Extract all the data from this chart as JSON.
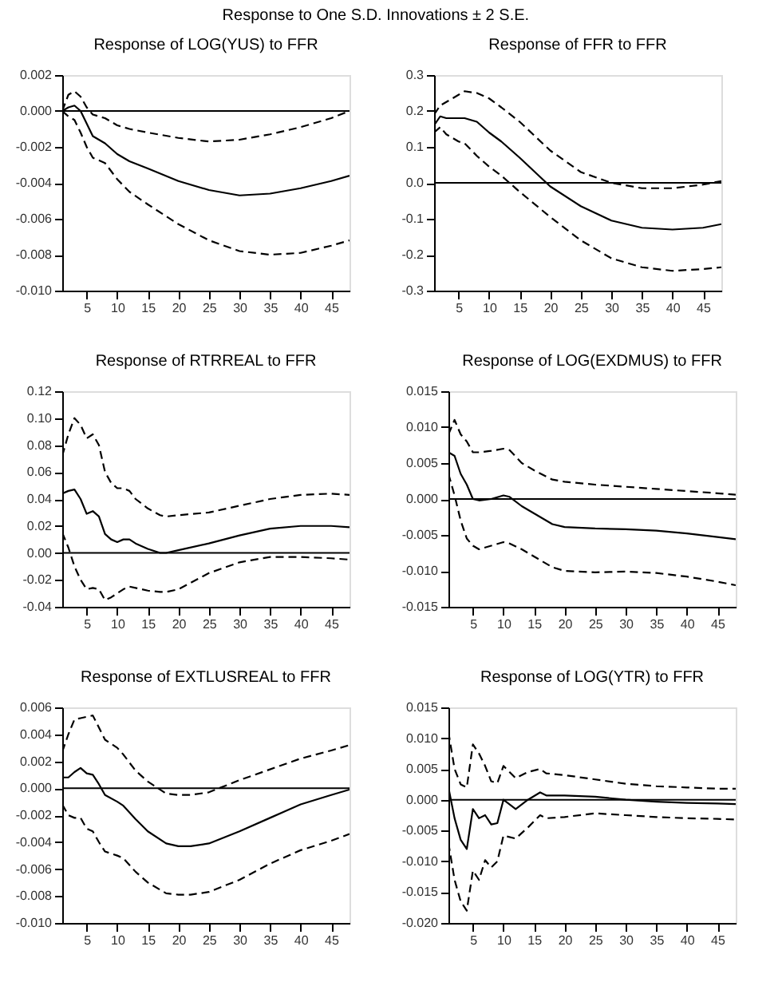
{
  "chart_data": [
    {
      "type": "line",
      "title": "Response of LOG(YUS) to FFR",
      "annotations": [
        "Response to One S.D. Innovations ± 2 S.E."
      ],
      "x": [
        1,
        2,
        3,
        4,
        5,
        6,
        8,
        10,
        12,
        15,
        20,
        25,
        30,
        35,
        40,
        45,
        48
      ],
      "series": [
        {
          "color": "#000000",
          "line_style": "solid",
          "values": [
            0,
            0.0002,
            0.0003,
            0.0,
            -0.0007,
            -0.0014,
            -0.0018,
            -0.0024,
            -0.0028,
            -0.0032,
            -0.0039,
            -0.0044,
            -0.0047,
            -0.0046,
            -0.0043,
            -0.0039,
            -0.0036
          ]
        },
        {
          "color": "#000000",
          "line_style": "dashed",
          "values": [
            0,
            0.0009,
            0.0011,
            0.0008,
            0.0002,
            -0.0002,
            -0.0004,
            -0.0008,
            -0.001,
            -0.0012,
            -0.0015,
            -0.0017,
            -0.0016,
            -0.0013,
            -0.0009,
            -0.0004,
            0.0
          ]
        },
        {
          "color": "#000000",
          "line_style": "dashed",
          "values": [
            0,
            -0.0003,
            -0.0005,
            -0.0012,
            -0.002,
            -0.0026,
            -0.0029,
            -0.0038,
            -0.0045,
            -0.0052,
            -0.0063,
            -0.0072,
            -0.0078,
            -0.008,
            -0.0079,
            -0.0075,
            -0.0072
          ]
        }
      ],
      "xlim": [
        1,
        48
      ],
      "xticks": [
        5,
        10,
        15,
        20,
        25,
        30,
        35,
        40,
        45
      ],
      "ylim": [
        -0.01,
        0.002
      ],
      "yticks": [
        {
          "value": -0.01,
          "label": "-0.010"
        },
        -0.008,
        -0.006,
        -0.004,
        -0.002,
        {
          "value": 0,
          "label": "0.000"
        },
        0.002
      ],
      "ref_lines": [
        {
          "axis": "y",
          "value": 0,
          "color": "#000000"
        }
      ]
    },
    {
      "type": "line",
      "title": "Response of FFR to FFR",
      "x": [
        1,
        2,
        3,
        4,
        5,
        6,
        8,
        10,
        12,
        15,
        20,
        25,
        30,
        35,
        40,
        45,
        48
      ],
      "series": [
        {
          "color": "#000000",
          "line_style": "solid",
          "values": [
            0.16,
            0.185,
            0.18,
            0.18,
            0.18,
            0.18,
            0.17,
            0.14,
            0.115,
            0.07,
            -0.01,
            -0.065,
            -0.105,
            -0.125,
            -0.13,
            -0.125,
            -0.115
          ]
        },
        {
          "color": "#000000",
          "line_style": "dashed",
          "values": [
            0.19,
            0.215,
            0.225,
            0.235,
            0.245,
            0.255,
            0.25,
            0.235,
            0.21,
            0.17,
            0.09,
            0.03,
            0.0,
            -0.015,
            -0.015,
            -0.005,
            0.005
          ]
        },
        {
          "color": "#000000",
          "line_style": "dashed",
          "values": [
            0.14,
            0.155,
            0.135,
            0.125,
            0.115,
            0.11,
            0.075,
            0.045,
            0.02,
            -0.025,
            -0.095,
            -0.16,
            -0.21,
            -0.235,
            -0.245,
            -0.24,
            -0.235
          ]
        }
      ],
      "xlim": [
        1,
        48
      ],
      "xticks": [
        5,
        10,
        15,
        20,
        25,
        30,
        35,
        40,
        45
      ],
      "ylim": [
        -0.3,
        0.3
      ],
      "yticks": [
        -0.3,
        -0.2,
        -0.1,
        {
          "value": 0,
          "label": "0.0"
        },
        0.1,
        0.2,
        0.3
      ],
      "ref_lines": [
        {
          "axis": "y",
          "value": 0,
          "color": "#000000"
        }
      ]
    },
    {
      "type": "line",
      "title": "Response of RTRREAL to FFR",
      "x": [
        1,
        2,
        3,
        4,
        5,
        6,
        7,
        8,
        9,
        10,
        11,
        12,
        13,
        15,
        17,
        18,
        20,
        25,
        30,
        35,
        40,
        45,
        48
      ],
      "series": [
        {
          "color": "#000000",
          "line_style": "solid",
          "values": [
            0.044,
            0.046,
            0.047,
            0.04,
            0.029,
            0.031,
            0.027,
            0.014,
            0.01,
            0.008,
            0.01,
            0.01,
            0.007,
            0.003,
            0.0,
            0.0,
            0.002,
            0.007,
            0.013,
            0.018,
            0.02,
            0.02,
            0.019
          ]
        },
        {
          "color": "#000000",
          "line_style": "dashed",
          "values": [
            0.072,
            0.088,
            0.1,
            0.095,
            0.085,
            0.088,
            0.08,
            0.06,
            0.052,
            0.048,
            0.048,
            0.046,
            0.04,
            0.033,
            0.028,
            0.027,
            0.028,
            0.03,
            0.035,
            0.04,
            0.043,
            0.044,
            0.043
          ]
        },
        {
          "color": "#000000",
          "line_style": "dashed",
          "values": [
            0.015,
            0.004,
            -0.01,
            -0.02,
            -0.027,
            -0.026,
            -0.027,
            -0.035,
            -0.033,
            -0.03,
            -0.027,
            -0.025,
            -0.026,
            -0.028,
            -0.029,
            -0.029,
            -0.027,
            -0.015,
            -0.007,
            -0.003,
            -0.003,
            -0.004,
            -0.005
          ]
        }
      ],
      "xlim": [
        1,
        48
      ],
      "xticks": [
        5,
        10,
        15,
        20,
        25,
        30,
        35,
        40,
        45
      ],
      "ylim": [
        -0.04,
        0.12
      ],
      "yticks": [
        -0.04,
        -0.02,
        {
          "value": 0,
          "label": "0.00"
        },
        0.02,
        0.04,
        0.06,
        0.08,
        {
          "value": 0.1,
          "label": "0.10"
        },
        0.12
      ],
      "ref_lines": [
        {
          "axis": "y",
          "value": 0,
          "color": "#000000"
        }
      ]
    },
    {
      "type": "line",
      "title": "Response of LOG(EXDMUS) to FFR",
      "x": [
        1,
        2,
        3,
        4,
        5,
        6,
        8,
        10,
        11,
        13,
        15,
        18,
        20,
        25,
        30,
        35,
        40,
        45,
        48
      ],
      "series": [
        {
          "color": "#000000",
          "line_style": "solid",
          "values": [
            0.0065,
            0.006,
            0.0035,
            0.002,
            0.0,
            -0.0002,
            0.0,
            0.0005,
            0.0003,
            -0.001,
            -0.002,
            -0.0035,
            -0.0039,
            -0.0041,
            -0.0042,
            -0.0044,
            -0.0048,
            -0.0053,
            -0.0056
          ]
        },
        {
          "color": "#000000",
          "line_style": "dashed",
          "values": [
            0.009,
            0.011,
            0.009,
            0.008,
            0.0065,
            0.0065,
            0.0067,
            0.007,
            0.0068,
            0.005,
            0.004,
            0.0027,
            0.0024,
            0.002,
            0.0017,
            0.0014,
            0.0011,
            0.0008,
            0.0006
          ]
        },
        {
          "color": "#000000",
          "line_style": "dashed",
          "values": [
            0.0035,
            0.0005,
            -0.003,
            -0.0055,
            -0.0065,
            -0.007,
            -0.0065,
            -0.006,
            -0.0062,
            -0.007,
            -0.008,
            -0.0095,
            -0.01,
            -0.0102,
            -0.0101,
            -0.0103,
            -0.0108,
            -0.0115,
            -0.012
          ]
        }
      ],
      "xlim": [
        1,
        48
      ],
      "xticks": [
        5,
        10,
        15,
        20,
        25,
        30,
        35,
        40,
        45
      ],
      "ylim": [
        -0.015,
        0.015
      ],
      "yticks": [
        -0.015,
        {
          "value": -0.01,
          "label": "-0.010"
        },
        -0.005,
        {
          "value": 0,
          "label": "0.000"
        },
        0.005,
        {
          "value": 0.01,
          "label": "0.010"
        },
        0.015
      ],
      "ref_lines": [
        {
          "axis": "y",
          "value": 0,
          "color": "#000000"
        }
      ]
    },
    {
      "type": "line",
      "title": "Response of EXTLUSREAL to FFR",
      "x": [
        1,
        2,
        3,
        4,
        5,
        6,
        7,
        8,
        10,
        11,
        13,
        15,
        18,
        20,
        22,
        25,
        30,
        35,
        40,
        45,
        48
      ],
      "series": [
        {
          "color": "#000000",
          "line_style": "solid",
          "values": [
            0.0008,
            0.0008,
            0.0012,
            0.0015,
            0.0011,
            0.001,
            0.0003,
            -0.0005,
            -0.001,
            -0.0013,
            -0.0023,
            -0.0032,
            -0.0041,
            -0.0043,
            -0.0043,
            -0.0041,
            -0.0032,
            -0.0022,
            -0.0012,
            -0.0005,
            -0.0001
          ]
        },
        {
          "color": "#000000",
          "line_style": "dashed",
          "values": [
            0.0027,
            0.004,
            0.0051,
            0.0052,
            0.0053,
            0.0054,
            0.0045,
            0.0036,
            0.003,
            0.0025,
            0.0013,
            0.0005,
            -0.0004,
            -0.0005,
            -0.0005,
            -0.0003,
            0.0006,
            0.0014,
            0.0022,
            0.0028,
            0.0032
          ]
        },
        {
          "color": "#000000",
          "line_style": "dashed",
          "values": [
            -0.0012,
            -0.002,
            -0.0022,
            -0.0022,
            -0.003,
            -0.0032,
            -0.004,
            -0.0047,
            -0.005,
            -0.0052,
            -0.0062,
            -0.007,
            -0.0078,
            -0.0079,
            -0.0079,
            -0.0077,
            -0.0068,
            -0.0056,
            -0.0046,
            -0.0039,
            -0.0034
          ]
        }
      ],
      "xlim": [
        1,
        48
      ],
      "xticks": [
        5,
        10,
        15,
        20,
        25,
        30,
        35,
        40,
        45
      ],
      "ylim": [
        -0.01,
        0.006
      ],
      "yticks": [
        {
          "value": -0.01,
          "label": "-0.010"
        },
        -0.008,
        -0.006,
        -0.004,
        -0.002,
        {
          "value": 0,
          "label": "0.000"
        },
        0.002,
        0.004,
        0.006
      ],
      "ref_lines": [
        {
          "axis": "y",
          "value": 0,
          "color": "#000000"
        }
      ]
    },
    {
      "type": "line",
      "title": "Response of LOG(YTR) to FFR",
      "x": [
        1,
        2,
        3,
        4,
        5,
        6,
        7,
        8,
        9,
        10,
        12,
        14,
        16,
        17,
        20,
        25,
        30,
        35,
        40,
        45,
        48
      ],
      "series": [
        {
          "color": "#000000",
          "line_style": "solid",
          "values": [
            0.002,
            -0.003,
            -0.0065,
            -0.008,
            -0.0015,
            -0.003,
            -0.0025,
            -0.004,
            -0.0038,
            0.0,
            -0.0015,
            0.0,
            0.0012,
            0.0007,
            0.0007,
            0.0005,
            0.0,
            -0.0003,
            -0.0005,
            -0.0006,
            -0.0007
          ]
        },
        {
          "color": "#000000",
          "line_style": "dashed",
          "values": [
            0.011,
            0.005,
            0.0025,
            0.002,
            0.009,
            0.0075,
            0.0055,
            0.003,
            0.0027,
            0.0055,
            0.0035,
            0.0045,
            0.005,
            0.0043,
            0.004,
            0.0033,
            0.0026,
            0.0022,
            0.002,
            0.0018,
            0.0018
          ]
        },
        {
          "color": "#000000",
          "line_style": "dashed",
          "values": [
            -0.007,
            -0.013,
            -0.0165,
            -0.018,
            -0.0115,
            -0.013,
            -0.0098,
            -0.011,
            -0.01,
            -0.0058,
            -0.0063,
            -0.0045,
            -0.0025,
            -0.003,
            -0.0028,
            -0.0022,
            -0.0025,
            -0.0028,
            -0.003,
            -0.0031,
            -0.0032
          ]
        }
      ],
      "xlim": [
        1,
        48
      ],
      "xticks": [
        5,
        10,
        15,
        20,
        25,
        30,
        35,
        40,
        45
      ],
      "ylim": [
        -0.02,
        0.015
      ],
      "yticks": [
        {
          "value": -0.02,
          "label": "-0.020"
        },
        -0.015,
        {
          "value": -0.01,
          "label": "-0.010"
        },
        -0.005,
        {
          "value": 0,
          "label": "0.000"
        },
        0.005,
        {
          "value": 0.01,
          "label": "0.010"
        },
        0.015
      ],
      "ref_lines": [
        {
          "axis": "y",
          "value": 0,
          "color": "#000000"
        }
      ]
    }
  ]
}
